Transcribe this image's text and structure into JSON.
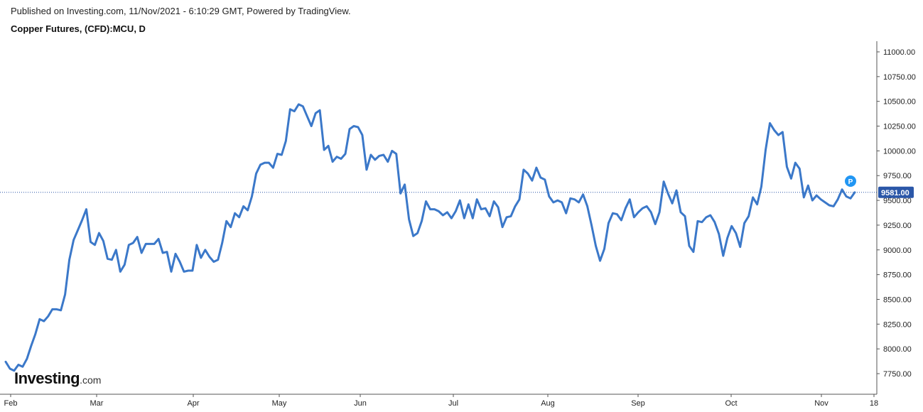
{
  "header": {
    "published": "Published on Investing.com, 11/Nov/2021 - 6:10:29 GMT, Powered by TradingView.",
    "title": "Copper Futures, (CFD):MCU, D"
  },
  "logo": {
    "main": "Investing",
    "suffix": ".com"
  },
  "chart_data": {
    "type": "line",
    "title": "Copper Futures, (CFD):MCU, D",
    "xlabel": "",
    "ylabel": "",
    "ylim": [
      7600,
      11120
    ],
    "y_ticks": [
      "11000.00",
      "10750.00",
      "10500.00",
      "10250.00",
      "10000.00",
      "9750.00",
      "9500.00",
      "9250.00",
      "9000.00",
      "8750.00",
      "8500.00",
      "8250.00",
      "8000.00",
      "7750.00"
    ],
    "x_ticks": [
      "Feb",
      "Mar",
      "Apr",
      "May",
      "Jun",
      "Jul",
      "Aug",
      "Sep",
      "Oct",
      "Nov",
      "18"
    ],
    "last_price": "9581.00",
    "marker_label": "P",
    "colors": {
      "line": "#3b78c9",
      "price_badge": "#2b57a8",
      "marker": "#2196f3"
    },
    "series": [
      {
        "values": [
          7870,
          7800,
          7780,
          7840,
          7820,
          7900,
          8030,
          8150,
          8300,
          8280,
          8330,
          8400,
          8400,
          8390,
          8550,
          8900,
          9100,
          9200,
          9300,
          9410,
          9080,
          9050,
          9170,
          9090,
          8910,
          8900,
          9000,
          8780,
          8850,
          9050,
          9070,
          9130,
          8970,
          9060,
          9060,
          9060,
          9110,
          8970,
          8980,
          8780,
          8960,
          8880,
          8780,
          8790,
          8790,
          9050,
          8920,
          9000,
          8930,
          8880,
          8900,
          9070,
          9290,
          9230,
          9370,
          9330,
          9440,
          9400,
          9540,
          9770,
          9860,
          9880,
          9880,
          9830,
          9970,
          9960,
          10100,
          10420,
          10400,
          10470,
          10450,
          10350,
          10250,
          10380,
          10410,
          10010,
          10050,
          9890,
          9940,
          9920,
          9970,
          10220,
          10250,
          10240,
          10160,
          9810,
          9960,
          9910,
          9950,
          9960,
          9890,
          10000,
          9970,
          9570,
          9660,
          9310,
          9140,
          9170,
          9290,
          9490,
          9410,
          9410,
          9390,
          9350,
          9380,
          9320,
          9390,
          9500,
          9320,
          9460,
          9320,
          9510,
          9410,
          9420,
          9340,
          9490,
          9430,
          9230,
          9330,
          9340,
          9440,
          9510,
          9810,
          9770,
          9700,
          9830,
          9730,
          9710,
          9540,
          9480,
          9500,
          9480,
          9370,
          9520,
          9510,
          9480,
          9560,
          9440,
          9250,
          9040,
          8890,
          9010,
          9270,
          9370,
          9360,
          9300,
          9420,
          9510,
          9330,
          9380,
          9420,
          9440,
          9380,
          9260,
          9380,
          9690,
          9570,
          9470,
          9600,
          9380,
          9340,
          9040,
          8980,
          9290,
          9280,
          9330,
          9350,
          9280,
          9160,
          8940,
          9120,
          9240,
          9170,
          9030,
          9270,
          9340,
          9530,
          9460,
          9640,
          10010,
          10280,
          10210,
          10160,
          10190,
          9840,
          9720,
          9880,
          9820,
          9530,
          9650,
          9500,
          9550,
          9510,
          9480,
          9450,
          9440,
          9510,
          9610,
          9540,
          9520,
          9581
        ]
      }
    ]
  }
}
